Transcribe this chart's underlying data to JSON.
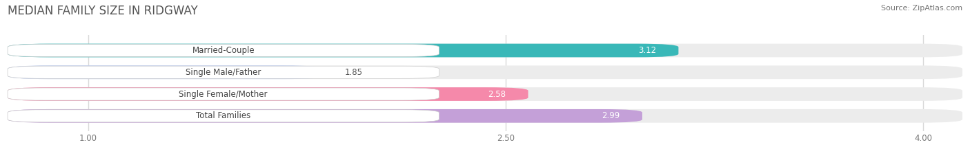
{
  "title": "MEDIAN FAMILY SIZE IN RIDGWAY",
  "source": "Source: ZipAtlas.com",
  "categories": [
    "Married-Couple",
    "Single Male/Father",
    "Single Female/Mother",
    "Total Families"
  ],
  "values": [
    3.12,
    1.85,
    2.58,
    2.99
  ],
  "bar_colors": [
    "#39b8b8",
    "#b3c5ee",
    "#f589aa",
    "#c4a0d8"
  ],
  "label_bg_colors": [
    "#39b8b8",
    "#b3c5ee",
    "#f589aa",
    "#c4a0d8"
  ],
  "xlim_start": 0.7,
  "xlim_end": 4.15,
  "xticks": [
    1.0,
    2.5,
    4.0
  ],
  "xtick_labels": [
    "1.00",
    "2.50",
    "4.00"
  ],
  "bar_height": 0.62,
  "label_fontsize": 8.5,
  "value_fontsize": 8.5,
  "title_fontsize": 12,
  "source_fontsize": 8,
  "background_color": "#ffffff",
  "bar_background_color": "#ececec",
  "grid_color": "#d8d8d8"
}
